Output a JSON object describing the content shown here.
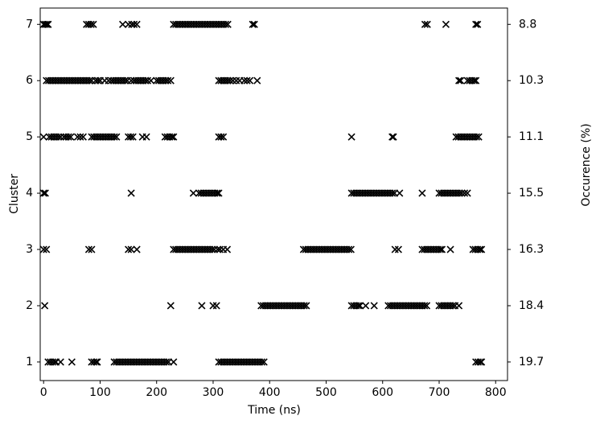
{
  "chart_data": {
    "type": "scatter",
    "x_label": "Time (ns)",
    "y_label": "Cluster",
    "y2_label": "Occurence (%)",
    "xlim": [
      -6,
      821
    ],
    "ylim": [
      0.67,
      7.29
    ],
    "y2lim": [
      0.67,
      7.29
    ],
    "xticks": [
      0,
      100,
      200,
      300,
      400,
      500,
      600,
      700,
      800
    ],
    "yticks": [
      1,
      2,
      3,
      4,
      5,
      6,
      7
    ],
    "y2ticks": [
      {
        "value": 7,
        "label": "8.8"
      },
      {
        "value": 6,
        "label": "10.3"
      },
      {
        "value": 5,
        "label": "11.1"
      },
      {
        "value": 4,
        "label": "15.5"
      },
      {
        "value": 3,
        "label": "16.3"
      },
      {
        "value": 2,
        "label": "18.4"
      },
      {
        "value": 1,
        "label": "19.7"
      }
    ],
    "marker": "x",
    "color": "#000000",
    "series": [
      {
        "y": 1,
        "x": [
          8,
          12,
          16,
          20,
          22,
          30,
          50,
          85,
          89,
          93,
          95,
          125,
          129,
          133,
          137,
          141,
          145,
          149,
          153,
          157,
          161,
          165,
          169,
          173,
          177,
          181,
          185,
          189,
          193,
          197,
          201,
          205,
          209,
          213,
          217,
          221,
          230,
          310,
          314,
          318,
          322,
          326,
          330,
          334,
          338,
          342,
          346,
          350,
          354,
          358,
          362,
          366,
          370,
          374,
          378,
          382,
          386,
          390,
          765,
          769,
          773,
          775
        ]
      },
      {
        "y": 2,
        "x": [
          2,
          225,
          280,
          300,
          306,
          385,
          389,
          393,
          397,
          401,
          405,
          409,
          413,
          417,
          421,
          425,
          429,
          433,
          437,
          441,
          445,
          449,
          453,
          457,
          461,
          465,
          545,
          549,
          553,
          557,
          560,
          570,
          585,
          610,
          614,
          618,
          622,
          626,
          630,
          634,
          638,
          642,
          646,
          650,
          654,
          658,
          662,
          666,
          670,
          674,
          678,
          700,
          704,
          708,
          712,
          716,
          720,
          724,
          728,
          735
        ]
      },
      {
        "y": 3,
        "x": [
          0,
          5,
          80,
          85,
          150,
          155,
          165,
          230,
          234,
          238,
          242,
          246,
          250,
          254,
          258,
          262,
          266,
          270,
          274,
          278,
          282,
          286,
          290,
          294,
          298,
          302,
          308,
          312,
          318,
          325,
          460,
          464,
          468,
          472,
          476,
          480,
          484,
          488,
          492,
          496,
          500,
          504,
          508,
          512,
          516,
          520,
          524,
          528,
          532,
          536,
          540,
          544,
          622,
          628,
          670,
          674,
          678,
          682,
          686,
          690,
          694,
          698,
          702,
          705,
          720,
          760,
          764,
          768,
          772,
          775
        ]
      },
      {
        "y": 4,
        "x": [
          0,
          3,
          155,
          265,
          275,
          279,
          283,
          287,
          291,
          295,
          299,
          303,
          307,
          310,
          545,
          549,
          553,
          557,
          561,
          565,
          569,
          573,
          577,
          581,
          585,
          589,
          593,
          597,
          601,
          605,
          609,
          613,
          617,
          621,
          630,
          670,
          700,
          704,
          708,
          712,
          716,
          720,
          724,
          728,
          732,
          736,
          740,
          745,
          750
        ]
      },
      {
        "y": 5,
        "x": [
          0,
          10,
          14,
          18,
          22,
          26,
          30,
          36,
          40,
          44,
          48,
          60,
          65,
          70,
          85,
          89,
          93,
          97,
          101,
          105,
          109,
          113,
          117,
          121,
          125,
          129,
          150,
          154,
          158,
          175,
          182,
          215,
          219,
          223,
          227,
          230,
          310,
          314,
          318,
          545,
          617,
          619,
          730,
          734,
          738,
          742,
          746,
          750,
          754,
          758,
          762,
          766,
          770
        ]
      },
      {
        "y": 6,
        "x": [
          5,
          9,
          13,
          17,
          21,
          25,
          29,
          33,
          37,
          41,
          45,
          49,
          53,
          57,
          61,
          65,
          69,
          73,
          77,
          81,
          85,
          92,
          96,
          100,
          108,
          115,
          120,
          124,
          128,
          132,
          136,
          140,
          144,
          148,
          155,
          160,
          164,
          168,
          172,
          176,
          180,
          184,
          190,
          200,
          204,
          208,
          212,
          216,
          220,
          225,
          310,
          314,
          318,
          322,
          326,
          330,
          335,
          341,
          347,
          355,
          360,
          365,
          378,
          735,
          738,
          750,
          754,
          758,
          762,
          765
        ]
      },
      {
        "y": 7,
        "x": [
          0,
          3,
          6,
          8,
          76,
          80,
          84,
          88,
          140,
          150,
          156,
          160,
          165,
          230,
          234,
          238,
          242,
          246,
          250,
          254,
          258,
          262,
          266,
          270,
          274,
          278,
          282,
          286,
          290,
          294,
          298,
          302,
          306,
          310,
          314,
          318,
          322,
          326,
          370,
          373,
          675,
          679,
          712,
          765,
          768
        ]
      }
    ]
  }
}
